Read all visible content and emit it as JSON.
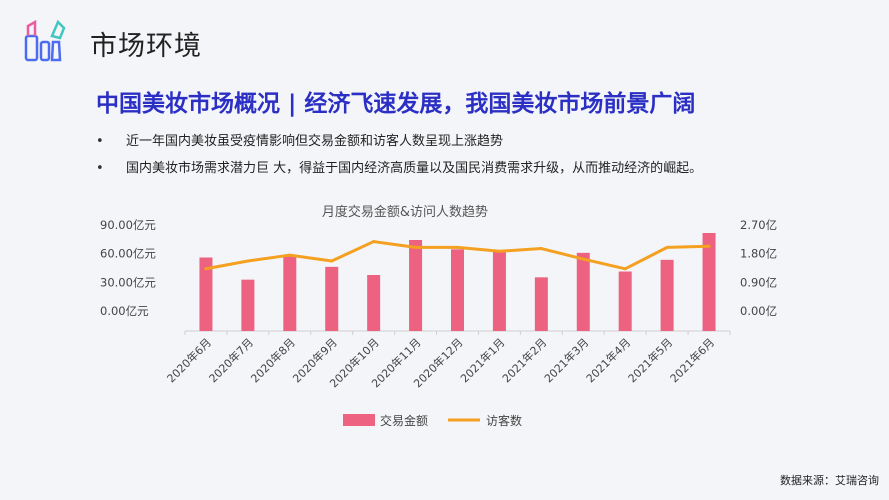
{
  "header": {
    "section_title": "市场环境",
    "headline": "中国美妆市场概况 | 经济飞速发展，我国美妆市场前景广阔"
  },
  "bullets": [
    "近一年国内美妆虽受疫情影响但交易金额和访客人数呈现上涨趋势",
    "国内美妆市场需求潜力巨 大，得益于国内经济高质量以及国民消费需求升级，从而推动经济的崛起。"
  ],
  "footer": {
    "source": "数据来源：艾瑞咨询"
  },
  "colors": {
    "bar": "#ec6280",
    "line": "#f4a020",
    "headline": "#2b2fc4"
  },
  "chart_data": {
    "type": "bar+line",
    "title": "月度交易金额&访问人数趋势",
    "categories": [
      "2020年6月",
      "2020年7月",
      "2020年8月",
      "2020年9月",
      "2020年10月",
      "2020年11月",
      "2020年12月",
      "2021年1月",
      "2021年2月",
      "2021年3月",
      "2021年4月",
      "2021年5月",
      "2021年6月"
    ],
    "series": [
      {
        "name": "交易金额",
        "type": "bar",
        "axis": "left",
        "values": [
          63,
          44,
          65,
          55,
          48,
          78,
          70,
          69,
          46,
          67,
          51,
          61,
          84
        ]
      },
      {
        "name": "访客数",
        "type": "line",
        "axis": "right",
        "values": [
          1.6,
          1.8,
          1.95,
          1.8,
          2.3,
          2.15,
          2.15,
          2.05,
          2.12,
          1.85,
          1.6,
          2.15,
          2.18
        ]
      }
    ],
    "left_axis": {
      "ticks": [
        "0.00亿元",
        "30.00亿元",
        "60.00亿元",
        "90.00亿元"
      ],
      "ylim": [
        0,
        90
      ]
    },
    "right_axis": {
      "ticks": [
        "0.00亿",
        "0.90亿",
        "1.80亿",
        "2.70亿"
      ],
      "ylim": [
        0,
        2.7
      ]
    },
    "legend_position": "bottom"
  }
}
